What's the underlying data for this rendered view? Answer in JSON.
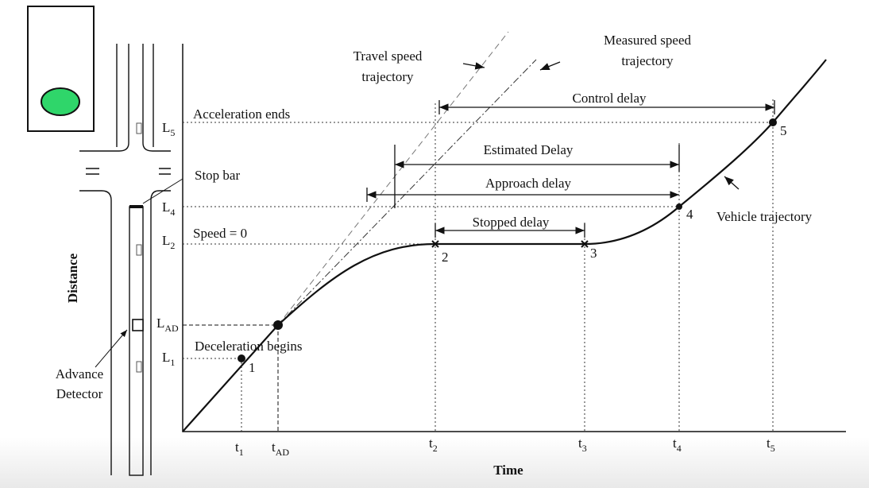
{
  "annotations": {
    "travel_speed": [
      "Travel speed",
      "trajectory"
    ],
    "measured_speed": [
      "Measured speed",
      "trajectory"
    ],
    "control_delay": "Control delay",
    "acceleration_ends": "Acceleration ends",
    "estimated_delay": "Estimated Delay",
    "stop_bar": "Stop bar",
    "approach_delay": "Approach delay",
    "vehicle_trajectory": "Vehicle trajectory",
    "speed_zero": "Speed = 0",
    "stopped_delay": "Stopped delay",
    "deceleration_begins": "Deceleration begins",
    "advance_detector": [
      "Advance",
      "Detector"
    ]
  },
  "axis_titles": {
    "y": "Distance",
    "x": "Time"
  },
  "y_labels": [
    {
      "base": "L",
      "sub": "5"
    },
    {
      "base": "L",
      "sub": "4"
    },
    {
      "base": "L",
      "sub": "2"
    },
    {
      "base": "L",
      "sub": "AD"
    },
    {
      "base": "L",
      "sub": "1"
    }
  ],
  "x_labels": [
    {
      "base": "t",
      "sub": "1"
    },
    {
      "base": "t",
      "sub": "AD"
    },
    {
      "base": "t",
      "sub": "2"
    },
    {
      "base": "t",
      "sub": "3"
    },
    {
      "base": "t",
      "sub": "4"
    },
    {
      "base": "t",
      "sub": "5"
    }
  ],
  "points": [
    "1",
    "2",
    "3",
    "4",
    "5"
  ]
}
